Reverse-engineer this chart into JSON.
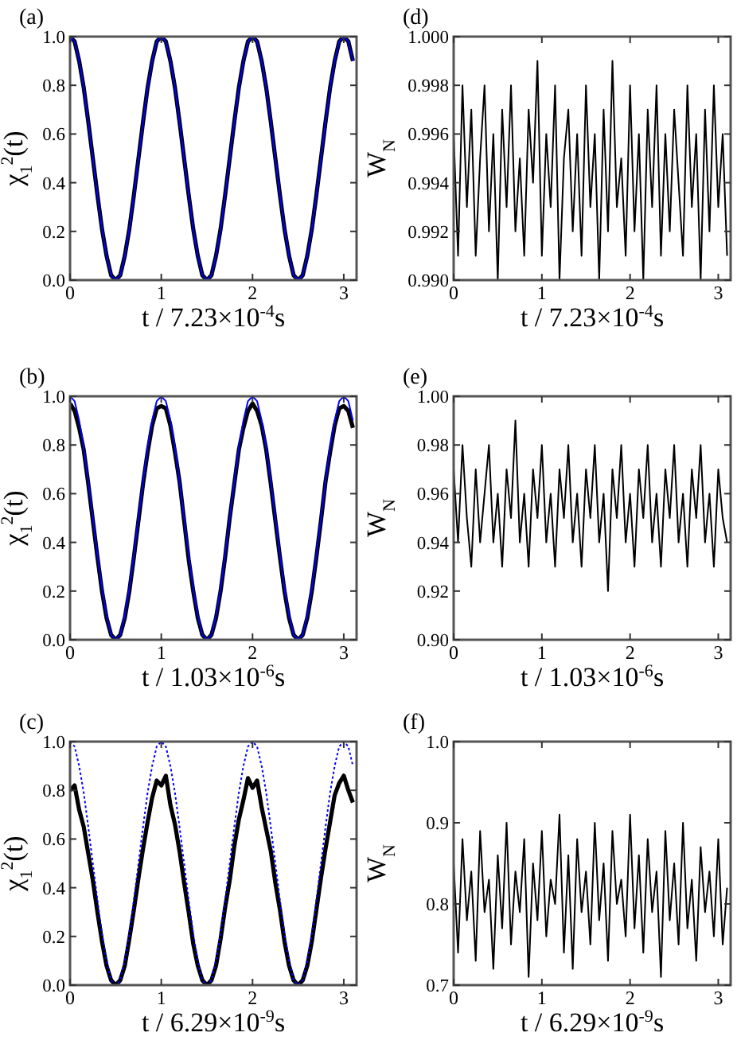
{
  "chart_data": [
    {
      "type": "line",
      "title": "(a)",
      "xlabel": "t / 7.23×10$^{-4}$s",
      "ylabel": "χ$_{1}$$^{2}$(t)",
      "xlim": [
        0,
        3.14
      ],
      "xticks": [
        0,
        1,
        2,
        3
      ],
      "ylim": [
        0,
        1
      ],
      "yticks": [
        {
          "value": 0,
          "label": "0.0"
        },
        {
          "value": 0.2,
          "label": "0.2"
        },
        {
          "value": 0.4,
          "label": "0.4"
        },
        {
          "value": 0.6,
          "label": "0.6"
        },
        {
          "value": 0.8,
          "label": "0.8"
        },
        {
          "value": 1,
          "label": "1.0"
        }
      ],
      "x": [
        0,
        0.05,
        0.1,
        0.15,
        0.2,
        0.25,
        0.3,
        0.35,
        0.4,
        0.45,
        0.5,
        0.55,
        0.6,
        0.65,
        0.7,
        0.75,
        0.8,
        0.85,
        0.9,
        0.95,
        1,
        1.05,
        1.1,
        1.15,
        1.2,
        1.25,
        1.3,
        1.35,
        1.4,
        1.45,
        1.5,
        1.55,
        1.6,
        1.65,
        1.7,
        1.75,
        1.8,
        1.85,
        1.9,
        1.95,
        2,
        2.05,
        2.1,
        2.15,
        2.2,
        2.25,
        2.3,
        2.35,
        2.4,
        2.45,
        2.5,
        2.55,
        2.6,
        2.65,
        2.7,
        2.75,
        2.8,
        2.85,
        2.9,
        2.95,
        3,
        3.05,
        3.1
      ],
      "series": [
        {
          "color": "#000000",
          "values": [
            1,
            0.98,
            0.9,
            0.79,
            0.65,
            0.5,
            0.35,
            0.21,
            0.1,
            0.02,
            0,
            0.02,
            0.1,
            0.21,
            0.35,
            0.5,
            0.65,
            0.79,
            0.9,
            0.98,
            1,
            0.98,
            0.9,
            0.79,
            0.65,
            0.5,
            0.35,
            0.21,
            0.1,
            0.02,
            0,
            0.02,
            0.1,
            0.21,
            0.35,
            0.5,
            0.65,
            0.79,
            0.9,
            0.98,
            1,
            0.98,
            0.9,
            0.79,
            0.65,
            0.5,
            0.35,
            0.21,
            0.1,
            0.02,
            0,
            0.02,
            0.1,
            0.21,
            0.35,
            0.5,
            0.65,
            0.79,
            0.9,
            0.98,
            1,
            0.98,
            0.9
          ]
        },
        {
          "color": "#0000ff",
          "line_style": "solid",
          "values": [
            1,
            0.98,
            0.9,
            0.79,
            0.65,
            0.5,
            0.35,
            0.21,
            0.1,
            0.02,
            0,
            0.02,
            0.1,
            0.21,
            0.35,
            0.5,
            0.65,
            0.79,
            0.9,
            0.98,
            1,
            0.98,
            0.9,
            0.79,
            0.65,
            0.5,
            0.35,
            0.21,
            0.1,
            0.02,
            0,
            0.02,
            0.1,
            0.21,
            0.35,
            0.5,
            0.65,
            0.79,
            0.9,
            0.98,
            1,
            0.98,
            0.9,
            0.79,
            0.65,
            0.5,
            0.35,
            0.21,
            0.1,
            0.02,
            0,
            0.02,
            0.1,
            0.21,
            0.35,
            0.5,
            0.65,
            0.79,
            0.9,
            0.98,
            1,
            0.98,
            0.9
          ]
        }
      ]
    },
    {
      "type": "line",
      "title": "(d)",
      "xlabel": "t / 7.23×10$^{-4}$s",
      "ylabel": "W$_{N}$",
      "xlim": [
        0,
        3.14
      ],
      "xticks": [
        0,
        1,
        2,
        3
      ],
      "ylim": [
        0.99,
        1
      ],
      "yticks": [
        {
          "value": 0.99,
          "label": "0.990"
        },
        {
          "value": 0.992,
          "label": "0.992"
        },
        {
          "value": 0.994,
          "label": "0.994"
        },
        {
          "value": 0.996,
          "label": "0.996"
        },
        {
          "value": 0.998,
          "label": "0.998"
        },
        {
          "value": 1,
          "label": "1.000"
        }
      ],
      "x": [
        0,
        0.05,
        0.1,
        0.15,
        0.2,
        0.25,
        0.3,
        0.35,
        0.4,
        0.45,
        0.5,
        0.55,
        0.6,
        0.65,
        0.7,
        0.75,
        0.8,
        0.85,
        0.9,
        0.95,
        1,
        1.05,
        1.1,
        1.15,
        1.2,
        1.25,
        1.3,
        1.35,
        1.4,
        1.45,
        1.5,
        1.55,
        1.6,
        1.65,
        1.7,
        1.75,
        1.8,
        1.85,
        1.9,
        1.95,
        2,
        2.05,
        2.1,
        2.15,
        2.2,
        2.25,
        2.3,
        2.35,
        2.4,
        2.45,
        2.5,
        2.55,
        2.6,
        2.65,
        2.7,
        2.75,
        2.8,
        2.85,
        2.9,
        2.95,
        3,
        3.05,
        3.1
      ],
      "series": [
        {
          "color": "#000000",
          "values": [
            0.996,
            0.991,
            0.998,
            0.993,
            0.997,
            0.991,
            0.995,
            0.998,
            0.992,
            0.996,
            0.99,
            0.997,
            0.993,
            0.998,
            0.992,
            0.995,
            0.991,
            0.997,
            0.994,
            0.999,
            0.991,
            0.996,
            0.993,
            0.998,
            0.99,
            0.995,
            0.997,
            0.992,
            0.996,
            0.991,
            0.998,
            0.993,
            0.996,
            0.99,
            0.997,
            0.992,
            0.999,
            0.993,
            0.995,
            0.991,
            0.998,
            0.992,
            0.996,
            0.99,
            0.997,
            0.993,
            0.998,
            0.991,
            0.996,
            0.992,
            0.997,
            0.994,
            0.991,
            0.998,
            0.993,
            0.996,
            0.99,
            0.997,
            0.992,
            0.998,
            0.993,
            0.996,
            0.991
          ]
        }
      ]
    },
    {
      "type": "line",
      "title": "(b)",
      "xlabel": "t / 1.03×10$^{-6}$s",
      "ylabel": "χ$_{1}$$^{2}$(t)",
      "xlim": [
        0,
        3.14
      ],
      "xticks": [
        0,
        1,
        2,
        3
      ],
      "ylim": [
        0,
        1
      ],
      "yticks": [
        {
          "value": 0,
          "label": "0.0"
        },
        {
          "value": 0.2,
          "label": "0.2"
        },
        {
          "value": 0.4,
          "label": "0.4"
        },
        {
          "value": 0.6,
          "label": "0.6"
        },
        {
          "value": 0.8,
          "label": "0.8"
        },
        {
          "value": 1,
          "label": "1.0"
        }
      ],
      "x": [
        0,
        0.05,
        0.1,
        0.15,
        0.2,
        0.25,
        0.3,
        0.35,
        0.4,
        0.45,
        0.5,
        0.55,
        0.6,
        0.65,
        0.7,
        0.75,
        0.8,
        0.85,
        0.9,
        0.95,
        1,
        1.05,
        1.1,
        1.15,
        1.2,
        1.25,
        1.3,
        1.35,
        1.4,
        1.45,
        1.5,
        1.55,
        1.6,
        1.65,
        1.7,
        1.75,
        1.8,
        1.85,
        1.9,
        1.95,
        2,
        2.05,
        2.1,
        2.15,
        2.2,
        2.25,
        2.3,
        2.35,
        2.4,
        2.45,
        2.5,
        2.55,
        2.6,
        2.65,
        2.7,
        2.75,
        2.8,
        2.85,
        2.9,
        2.95,
        3,
        3.05,
        3.1
      ],
      "series": [
        {
          "color": "#000000",
          "values": [
            0.97,
            0.94,
            0.87,
            0.78,
            0.64,
            0.49,
            0.34,
            0.2,
            0.09,
            0.02,
            0,
            0.02,
            0.09,
            0.2,
            0.34,
            0.49,
            0.64,
            0.77,
            0.88,
            0.95,
            0.96,
            0.95,
            0.88,
            0.77,
            0.65,
            0.49,
            0.33,
            0.2,
            0.09,
            0.02,
            0,
            0.02,
            0.09,
            0.2,
            0.34,
            0.5,
            0.64,
            0.78,
            0.87,
            0.94,
            0.97,
            0.94,
            0.88,
            0.78,
            0.64,
            0.49,
            0.34,
            0.2,
            0.09,
            0.02,
            0,
            0.02,
            0.09,
            0.2,
            0.34,
            0.49,
            0.65,
            0.77,
            0.88,
            0.95,
            0.96,
            0.94,
            0.87
          ]
        },
        {
          "color": "#0000ff",
          "line_style": "solid",
          "values": [
            1,
            0.98,
            0.9,
            0.79,
            0.65,
            0.5,
            0.35,
            0.21,
            0.1,
            0.02,
            0,
            0.02,
            0.1,
            0.21,
            0.35,
            0.5,
            0.65,
            0.79,
            0.9,
            0.98,
            1,
            0.98,
            0.9,
            0.79,
            0.65,
            0.5,
            0.35,
            0.21,
            0.1,
            0.02,
            0,
            0.02,
            0.1,
            0.21,
            0.35,
            0.5,
            0.65,
            0.79,
            0.9,
            0.98,
            1,
            0.98,
            0.9,
            0.79,
            0.65,
            0.5,
            0.35,
            0.21,
            0.1,
            0.02,
            0,
            0.02,
            0.1,
            0.21,
            0.35,
            0.5,
            0.65,
            0.79,
            0.9,
            0.98,
            1,
            0.98,
            0.9
          ]
        }
      ]
    },
    {
      "type": "line",
      "title": "(e)",
      "xlabel": "t / 1.03×10$^{-6}$s",
      "ylabel": "W$_{N}$",
      "xlim": [
        0,
        3.14
      ],
      "xticks": [
        0,
        1,
        2,
        3
      ],
      "ylim": [
        0.9,
        1
      ],
      "yticks": [
        {
          "value": 0.9,
          "label": "0.90"
        },
        {
          "value": 0.92,
          "label": "0.92"
        },
        {
          "value": 0.94,
          "label": "0.94"
        },
        {
          "value": 0.96,
          "label": "0.96"
        },
        {
          "value": 0.98,
          "label": "0.98"
        },
        {
          "value": 1,
          "label": "1.00"
        }
      ],
      "x": [
        0,
        0.05,
        0.1,
        0.15,
        0.2,
        0.25,
        0.3,
        0.35,
        0.4,
        0.45,
        0.5,
        0.55,
        0.6,
        0.65,
        0.7,
        0.75,
        0.8,
        0.85,
        0.9,
        0.95,
        1,
        1.05,
        1.1,
        1.15,
        1.2,
        1.25,
        1.3,
        1.35,
        1.4,
        1.45,
        1.5,
        1.55,
        1.6,
        1.65,
        1.7,
        1.75,
        1.8,
        1.85,
        1.9,
        1.95,
        2,
        2.05,
        2.1,
        2.15,
        2.2,
        2.25,
        2.3,
        2.35,
        2.4,
        2.45,
        2.5,
        2.55,
        2.6,
        2.65,
        2.7,
        2.75,
        2.8,
        2.85,
        2.9,
        2.95,
        3,
        3.05,
        3.1
      ],
      "series": [
        {
          "color": "#000000",
          "values": [
            0.97,
            0.94,
            0.98,
            0.95,
            0.93,
            0.97,
            0.94,
            0.96,
            0.98,
            0.94,
            0.96,
            0.93,
            0.97,
            0.95,
            0.99,
            0.94,
            0.96,
            0.93,
            0.97,
            0.95,
            0.98,
            0.94,
            0.96,
            0.93,
            0.97,
            0.95,
            0.98,
            0.94,
            0.96,
            0.93,
            0.97,
            0.95,
            0.98,
            0.94,
            0.96,
            0.92,
            0.97,
            0.95,
            0.98,
            0.94,
            0.96,
            0.93,
            0.97,
            0.95,
            0.98,
            0.94,
            0.96,
            0.93,
            0.97,
            0.95,
            0.98,
            0.94,
            0.96,
            0.93,
            0.97,
            0.95,
            0.98,
            0.94,
            0.96,
            0.93,
            0.97,
            0.95,
            0.94
          ]
        }
      ]
    },
    {
      "type": "line",
      "title": "(c)",
      "xlabel": "t / 6.29×10$^{-9}$s",
      "ylabel": "χ$_{1}$$^{2}$(t)",
      "xlim": [
        0,
        3.14
      ],
      "xticks": [
        0,
        1,
        2,
        3
      ],
      "ylim": [
        0,
        1
      ],
      "yticks": [
        {
          "value": 0,
          "label": "0.0"
        },
        {
          "value": 0.2,
          "label": "0.2"
        },
        {
          "value": 0.4,
          "label": "0.4"
        },
        {
          "value": 0.6,
          "label": "0.6"
        },
        {
          "value": 0.8,
          "label": "0.8"
        },
        {
          "value": 1,
          "label": "1.0"
        }
      ],
      "x": [
        0,
        0.05,
        0.1,
        0.15,
        0.2,
        0.25,
        0.3,
        0.35,
        0.4,
        0.45,
        0.5,
        0.55,
        0.6,
        0.65,
        0.7,
        0.75,
        0.8,
        0.85,
        0.9,
        0.95,
        1,
        1.05,
        1.1,
        1.15,
        1.2,
        1.25,
        1.3,
        1.35,
        1.4,
        1.45,
        1.5,
        1.55,
        1.6,
        1.65,
        1.7,
        1.75,
        1.8,
        1.85,
        1.9,
        1.95,
        2,
        2.05,
        2.1,
        2.15,
        2.2,
        2.25,
        2.3,
        2.35,
        2.4,
        2.45,
        2.5,
        2.55,
        2.6,
        2.65,
        2.7,
        2.75,
        2.8,
        2.85,
        2.9,
        2.95,
        3,
        3.05,
        3.1
      ],
      "series": [
        {
          "color": "#000000",
          "values": [
            0.8,
            0.82,
            0.72,
            0.65,
            0.54,
            0.43,
            0.3,
            0.18,
            0.08,
            0.02,
            0,
            0.02,
            0.08,
            0.19,
            0.31,
            0.44,
            0.56,
            0.67,
            0.77,
            0.84,
            0.82,
            0.86,
            0.74,
            0.66,
            0.55,
            0.42,
            0.3,
            0.17,
            0.08,
            0.02,
            0,
            0.02,
            0.08,
            0.19,
            0.32,
            0.43,
            0.57,
            0.68,
            0.76,
            0.85,
            0.81,
            0.84,
            0.73,
            0.64,
            0.55,
            0.42,
            0.31,
            0.18,
            0.08,
            0.02,
            0,
            0.02,
            0.08,
            0.18,
            0.31,
            0.44,
            0.56,
            0.67,
            0.78,
            0.83,
            0.86,
            0.8,
            0.75
          ]
        },
        {
          "color": "#0000ff",
          "line_style": "dotted",
          "values": [
            1,
            0.98,
            0.9,
            0.79,
            0.65,
            0.5,
            0.35,
            0.21,
            0.1,
            0.02,
            0,
            0.02,
            0.1,
            0.21,
            0.35,
            0.5,
            0.65,
            0.79,
            0.9,
            0.98,
            1,
            0.98,
            0.9,
            0.79,
            0.65,
            0.5,
            0.35,
            0.21,
            0.1,
            0.02,
            0,
            0.02,
            0.1,
            0.21,
            0.35,
            0.5,
            0.65,
            0.79,
            0.9,
            0.98,
            1,
            0.98,
            0.9,
            0.79,
            0.65,
            0.5,
            0.35,
            0.21,
            0.1,
            0.02,
            0,
            0.02,
            0.1,
            0.21,
            0.35,
            0.5,
            0.65,
            0.79,
            0.9,
            0.98,
            1,
            0.98,
            0.9
          ]
        }
      ]
    },
    {
      "type": "line",
      "title": "(f)",
      "xlabel": "t / 6.29×10$^{-9}$s",
      "ylabel": "W$_{N}$",
      "xlim": [
        0,
        3.14
      ],
      "xticks": [
        0,
        1,
        2,
        3
      ],
      "ylim": [
        0.7,
        1
      ],
      "yticks": [
        0.7,
        0.8,
        0.9,
        {
          "value": 1,
          "label": "1.0"
        }
      ],
      "x": [
        0,
        0.05,
        0.1,
        0.15,
        0.2,
        0.25,
        0.3,
        0.35,
        0.4,
        0.45,
        0.5,
        0.55,
        0.6,
        0.65,
        0.7,
        0.75,
        0.8,
        0.85,
        0.9,
        0.95,
        1,
        1.05,
        1.1,
        1.15,
        1.2,
        1.25,
        1.3,
        1.35,
        1.4,
        1.45,
        1.5,
        1.55,
        1.6,
        1.65,
        1.7,
        1.75,
        1.8,
        1.85,
        1.9,
        1.95,
        2,
        2.05,
        2.1,
        2.15,
        2.2,
        2.25,
        2.3,
        2.35,
        2.4,
        2.45,
        2.5,
        2.55,
        2.6,
        2.65,
        2.7,
        2.75,
        2.8,
        2.85,
        2.9,
        2.95,
        3,
        3.05,
        3.1
      ],
      "series": [
        {
          "color": "#000000",
          "values": [
            0.85,
            0.74,
            0.88,
            0.78,
            0.84,
            0.73,
            0.89,
            0.79,
            0.83,
            0.72,
            0.86,
            0.77,
            0.9,
            0.75,
            0.84,
            0.79,
            0.88,
            0.71,
            0.85,
            0.78,
            0.89,
            0.76,
            0.83,
            0.8,
            0.91,
            0.74,
            0.86,
            0.72,
            0.88,
            0.79,
            0.84,
            0.75,
            0.9,
            0.78,
            0.85,
            0.73,
            0.89,
            0.8,
            0.83,
            0.76,
            0.91,
            0.77,
            0.86,
            0.74,
            0.88,
            0.79,
            0.84,
            0.71,
            0.89,
            0.78,
            0.85,
            0.75,
            0.9,
            0.77,
            0.83,
            0.73,
            0.87,
            0.79,
            0.84,
            0.76,
            0.88,
            0.75,
            0.82
          ]
        }
      ]
    }
  ]
}
